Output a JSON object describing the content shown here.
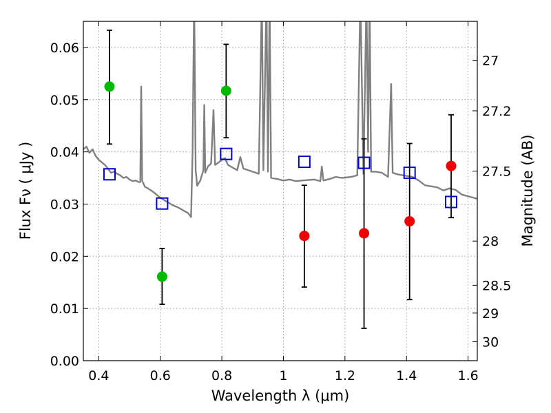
{
  "chart_data": {
    "type": "scatter",
    "xlabel": "Wavelength  λ (μm)",
    "ylabel": "Flux  Fν  ( μJy )",
    "y2label": "Magnitude (AB)",
    "xlim": [
      0.35,
      1.63
    ],
    "ylim": [
      0.0,
      0.065
    ],
    "grid": true,
    "x_ticks": [
      0.4,
      0.6,
      0.8,
      1.0,
      1.2,
      1.4,
      1.6
    ],
    "x_tick_labels": [
      "0.4",
      "0.6",
      "0.8",
      "1",
      "1.2",
      "1.4",
      "1.6"
    ],
    "y_ticks": [
      0.0,
      0.01,
      0.02,
      0.03,
      0.04,
      0.05,
      0.06
    ],
    "y_tick_labels": [
      "0.00",
      "0.01",
      "0.02",
      "0.03",
      "0.04",
      "0.05",
      "0.06"
    ],
    "y2_ticks": [
      {
        "label": "27",
        "mag": 27.0
      },
      {
        "label": "27.2",
        "mag": 27.2
      },
      {
        "label": "27.5",
        "mag": 27.5
      },
      {
        "label": "28",
        "mag": 28.0
      },
      {
        "label": "28.5",
        "mag": 28.5
      },
      {
        "label": "29",
        "mag": 29.0
      },
      {
        "label": "30",
        "mag": 30.0
      }
    ],
    "series": [
      {
        "color": "#00bb00",
        "marker": "circle",
        "points": [
          {
            "x": 0.435,
            "y": 0.0525,
            "err_lo": 0.0415,
            "err_hi": 0.0633
          },
          {
            "x": 0.606,
            "y": 0.0161,
            "err_lo": 0.0108,
            "err_hi": 0.0215
          },
          {
            "x": 0.814,
            "y": 0.0517,
            "err_lo": 0.0427,
            "err_hi": 0.0606
          }
        ]
      },
      {
        "color": "#ee0000",
        "marker": "circle",
        "points": [
          {
            "x": 1.068,
            "y": 0.0239,
            "err_lo": 0.0141,
            "err_hi": 0.0336
          },
          {
            "x": 1.262,
            "y": 0.0244,
            "err_lo": 0.0062,
            "err_hi": 0.0425
          },
          {
            "x": 1.41,
            "y": 0.0267,
            "err_lo": 0.0117,
            "err_hi": 0.0416
          },
          {
            "x": 1.545,
            "y": 0.0373,
            "err_lo": 0.0274,
            "err_hi": 0.0471
          }
        ]
      },
      {
        "color": "#0000cc",
        "marker": "open-square",
        "points": [
          {
            "x": 0.435,
            "y": 0.0357
          },
          {
            "x": 0.606,
            "y": 0.0301
          },
          {
            "x": 0.814,
            "y": 0.0396
          },
          {
            "x": 1.068,
            "y": 0.0381
          },
          {
            "x": 1.262,
            "y": 0.0379
          },
          {
            "x": 1.41,
            "y": 0.036
          },
          {
            "x": 1.545,
            "y": 0.0304
          }
        ]
      }
    ],
    "model_spectrum": {
      "color": "#808080",
      "points": [
        [
          0.35,
          0.0405
        ],
        [
          0.36,
          0.041
        ],
        [
          0.37,
          0.0398
        ],
        [
          0.38,
          0.0405
        ],
        [
          0.39,
          0.0392
        ],
        [
          0.4,
          0.0385
        ],
        [
          0.41,
          0.038
        ],
        [
          0.42,
          0.0375
        ],
        [
          0.43,
          0.0368
        ],
        [
          0.44,
          0.036
        ],
        [
          0.45,
          0.0362
        ],
        [
          0.46,
          0.0358
        ],
        [
          0.47,
          0.0355
        ],
        [
          0.48,
          0.035
        ],
        [
          0.49,
          0.0352
        ],
        [
          0.5,
          0.0347
        ],
        [
          0.51,
          0.0344
        ],
        [
          0.52,
          0.0345
        ],
        [
          0.53,
          0.0342
        ],
        [
          0.535,
          0.0342
        ],
        [
          0.538,
          0.0525
        ],
        [
          0.541,
          0.0345
        ],
        [
          0.55,
          0.0333
        ],
        [
          0.56,
          0.033
        ],
        [
          0.58,
          0.0322
        ],
        [
          0.6,
          0.0312
        ],
        [
          0.62,
          0.0305
        ],
        [
          0.64,
          0.0298
        ],
        [
          0.66,
          0.0293
        ],
        [
          0.68,
          0.0286
        ],
        [
          0.69,
          0.0283
        ],
        [
          0.7,
          0.0275
        ],
        [
          0.705,
          0.04
        ],
        [
          0.71,
          0.07
        ],
        [
          0.715,
          0.0365
        ],
        [
          0.72,
          0.0335
        ],
        [
          0.73,
          0.0345
        ],
        [
          0.74,
          0.0365
        ],
        [
          0.743,
          0.049
        ],
        [
          0.746,
          0.036
        ],
        [
          0.755,
          0.0372
        ],
        [
          0.765,
          0.0378
        ],
        [
          0.773,
          0.048
        ],
        [
          0.778,
          0.0375
        ],
        [
          0.79,
          0.038
        ],
        [
          0.8,
          0.0385
        ],
        [
          0.81,
          0.0388
        ],
        [
          0.82,
          0.0375
        ],
        [
          0.835,
          0.037
        ],
        [
          0.85,
          0.0365
        ],
        [
          0.86,
          0.039
        ],
        [
          0.87,
          0.0368
        ],
        [
          0.9,
          0.0362
        ],
        [
          0.92,
          0.0358
        ],
        [
          0.93,
          0.07
        ],
        [
          0.935,
          0.0365
        ],
        [
          0.945,
          0.07
        ],
        [
          0.95,
          0.0362
        ],
        [
          0.955,
          0.07
        ],
        [
          0.96,
          0.035
        ],
        [
          0.98,
          0.0348
        ],
        [
          1.0,
          0.0345
        ],
        [
          1.02,
          0.0347
        ],
        [
          1.04,
          0.0344
        ],
        [
          1.06,
          0.0345
        ],
        [
          1.08,
          0.0346
        ],
        [
          1.1,
          0.0347
        ],
        [
          1.12,
          0.0344
        ],
        [
          1.125,
          0.0372
        ],
        [
          1.13,
          0.0345
        ],
        [
          1.15,
          0.0348
        ],
        [
          1.17,
          0.0352
        ],
        [
          1.19,
          0.035
        ],
        [
          1.22,
          0.0352
        ],
        [
          1.24,
          0.0355
        ],
        [
          1.25,
          0.07
        ],
        [
          1.26,
          0.0358
        ],
        [
          1.27,
          0.07
        ],
        [
          1.275,
          0.04
        ],
        [
          1.28,
          0.07
        ],
        [
          1.285,
          0.0362
        ],
        [
          1.3,
          0.0362
        ],
        [
          1.32,
          0.036
        ],
        [
          1.34,
          0.0352
        ],
        [
          1.35,
          0.053
        ],
        [
          1.355,
          0.036
        ],
        [
          1.37,
          0.0357
        ],
        [
          1.4,
          0.0354
        ],
        [
          1.42,
          0.0352
        ],
        [
          1.44,
          0.0345
        ],
        [
          1.46,
          0.0336
        ],
        [
          1.48,
          0.0334
        ],
        [
          1.5,
          0.0332
        ],
        [
          1.52,
          0.0326
        ],
        [
          1.54,
          0.033
        ],
        [
          1.56,
          0.0327
        ],
        [
          1.58,
          0.0318
        ],
        [
          1.6,
          0.0315
        ],
        [
          1.63,
          0.031
        ]
      ]
    }
  }
}
